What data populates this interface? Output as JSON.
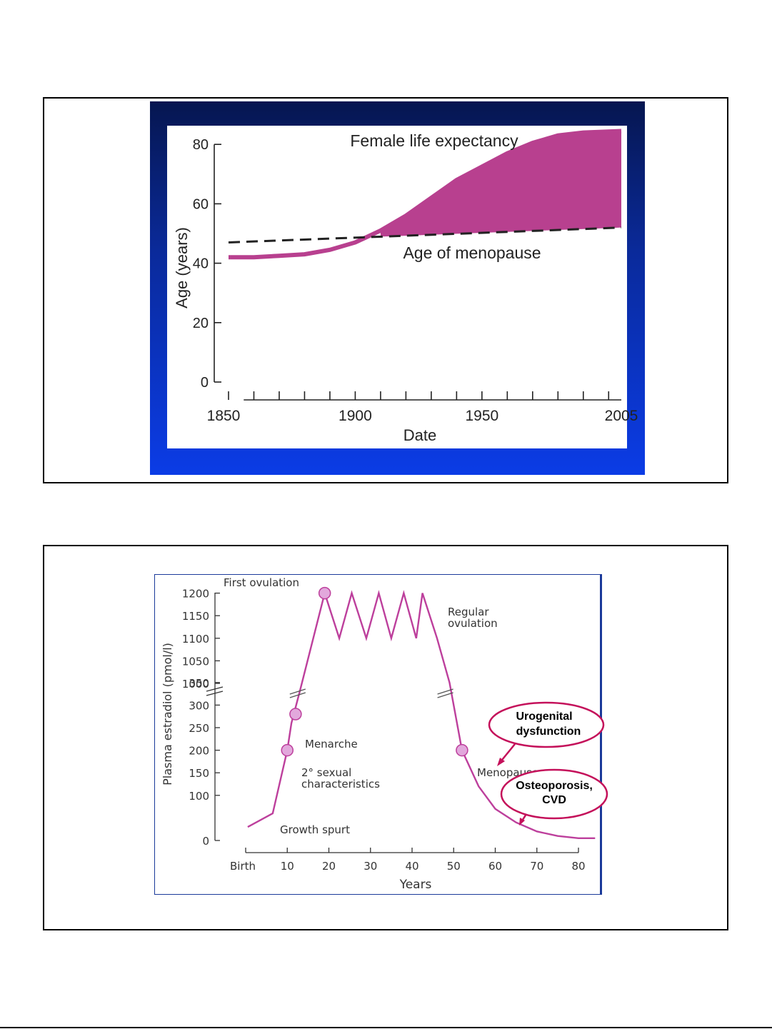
{
  "chart_data": [
    {
      "type": "area",
      "xlabel": "Date",
      "ylabel": "Age (years)",
      "x_ticks": [
        "1850",
        "1900",
        "1950",
        "2005"
      ],
      "y_ticks": [
        "0",
        "20",
        "40",
        "60",
        "80"
      ],
      "xlim": [
        1850,
        2005
      ],
      "ylim": [
        0,
        80
      ],
      "series": [
        {
          "name": "Female life expectancy",
          "x": [
            1850,
            1860,
            1870,
            1880,
            1890,
            1900,
            1910,
            1920,
            1930,
            1940,
            1950,
            1960,
            1970,
            1980,
            1990,
            2005
          ],
          "y": [
            42,
            42,
            42.5,
            43,
            44.5,
            47,
            51,
            56,
            62,
            68,
            72.5,
            77,
            80.5,
            83,
            84,
            84.5
          ]
        },
        {
          "name": "Age of menopause",
          "x": [
            1850,
            2005
          ],
          "y": [
            47,
            52
          ]
        }
      ],
      "colors": {
        "fill": "#b8408f",
        "dashed": "#222222"
      }
    },
    {
      "type": "line",
      "xlabel": "Years",
      "ylabel": "Plasma estradiol (pmol/l)",
      "x_ticks": [
        "Birth",
        "10",
        "20",
        "30",
        "40",
        "50",
        "60",
        "70",
        "80"
      ],
      "y_ticks": [
        "0",
        "100",
        "150",
        "200",
        "250",
        "300",
        "350",
        "1000",
        "1050",
        "1100",
        "1150",
        "1200"
      ],
      "series": [
        {
          "x": [
            0.5,
            6.5,
            8,
            10,
            11,
            13,
            19,
            22.5,
            25.5,
            29,
            32,
            35,
            38,
            41,
            42.5,
            46,
            49,
            52,
            56,
            60,
            65,
            70,
            75,
            80,
            84
          ],
          "y": [
            30,
            60,
            120,
            200,
            260,
            330,
            1200,
            1100,
            1200,
            1100,
            1200,
            1100,
            1200,
            1100,
            1200,
            1100,
            350,
            200,
            120,
            70,
            40,
            20,
            10,
            5,
            5
          ]
        }
      ],
      "markers": [
        {
          "label": "First ovulation",
          "x": 19,
          "y": 1200
        },
        {
          "label": "Menarche",
          "x": 12,
          "y": 280
        },
        {
          "label": "2° sexual characteristics",
          "x": 10,
          "y": 200
        },
        {
          "label": "Menopause",
          "x": 52,
          "y": 200
        }
      ],
      "annotations": {
        "regular_ovulation": [
          "Regular",
          "ovulation"
        ],
        "growth_spurt": "Growth spurt",
        "menopause_word": "Menopause",
        "sexual_char": [
          "2° sexual",
          "characteristics"
        ],
        "callout1": [
          "Urogenital",
          "dysfunction"
        ],
        "callout2": [
          "Osteoporosis,",
          "CVD"
        ]
      },
      "colors": {
        "line": "#bd3f9c",
        "marker": "#e2a8dc",
        "callout": "#c4105a"
      }
    }
  ]
}
